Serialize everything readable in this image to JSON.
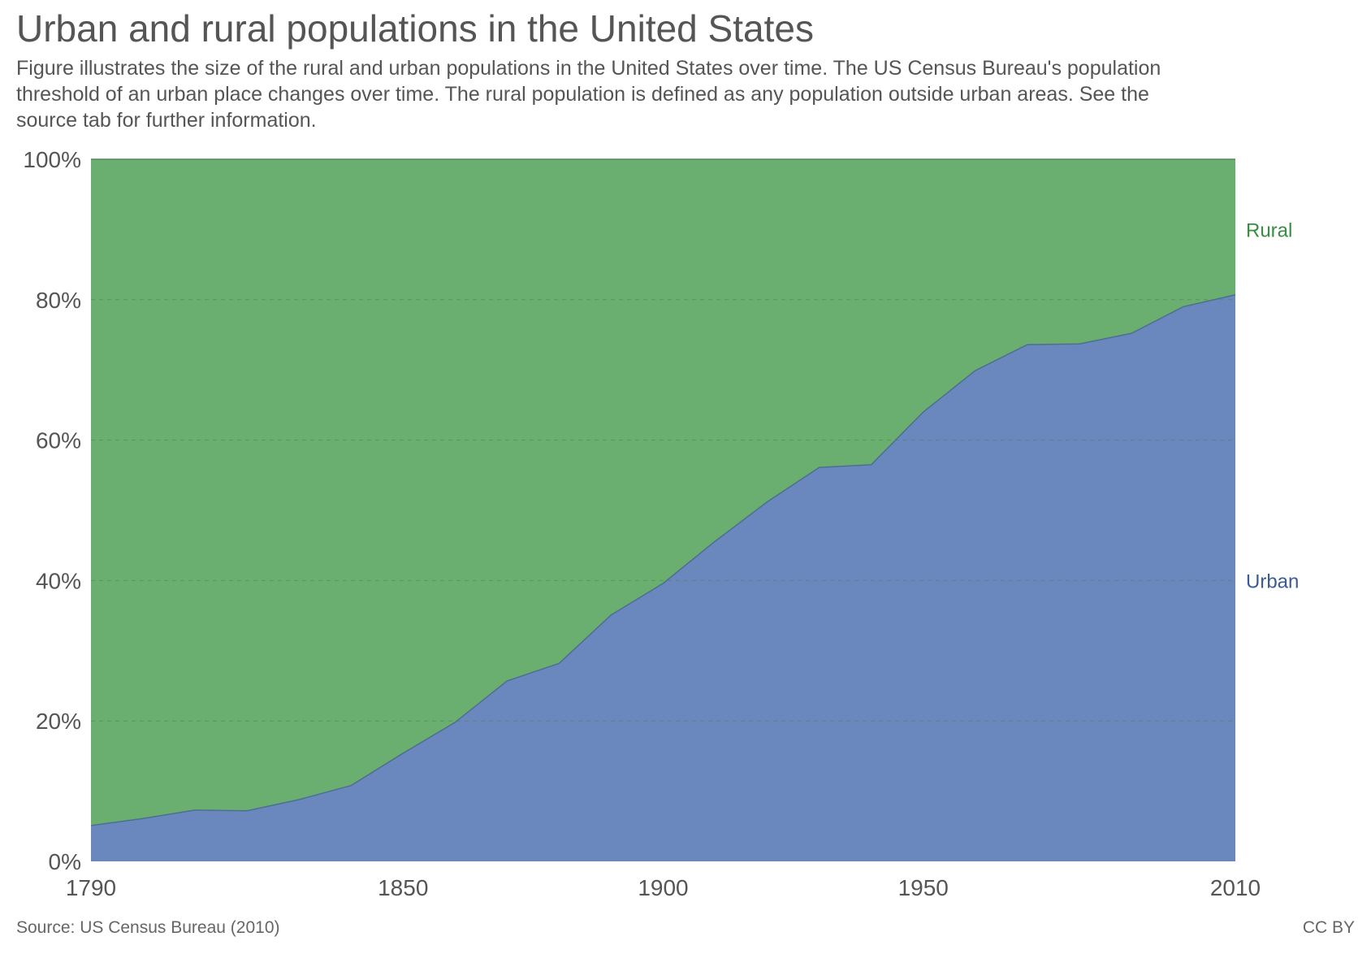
{
  "header": {
    "title": "Urban and rural populations in the United States",
    "subtitle": "Figure illustrates the size of the rural and urban populations in the United States over time. The US Census Bureau's population threshold of an urban place changes over time. The rural population is defined as any population outside urban areas. See the source tab for further information."
  },
  "footer": {
    "source": "Source: US Census Bureau (2010)",
    "license": "CC BY"
  },
  "colors": {
    "urban": "#6a88bd",
    "rural": "#6aaf70",
    "urban_label": "#3a5a98",
    "rural_label": "#3a8c42",
    "grid": "#4a7f55",
    "axis_text": "#555555"
  },
  "chart_data": {
    "type": "area",
    "stacked": true,
    "normalized": true,
    "x": [
      1790,
      1800,
      1810,
      1820,
      1830,
      1840,
      1850,
      1860,
      1870,
      1880,
      1890,
      1900,
      1910,
      1920,
      1930,
      1940,
      1950,
      1960,
      1970,
      1980,
      1990,
      2000,
      2010
    ],
    "series": [
      {
        "name": "Urban",
        "values": [
          5.1,
          6.1,
          7.3,
          7.2,
          8.8,
          10.8,
          15.4,
          19.8,
          25.7,
          28.2,
          35.1,
          39.6,
          45.6,
          51.2,
          56.1,
          56.5,
          64.0,
          69.9,
          73.6,
          73.7,
          75.2,
          79.0,
          80.7
        ]
      },
      {
        "name": "Rural",
        "values": [
          94.9,
          93.9,
          92.7,
          92.8,
          91.2,
          89.2,
          84.6,
          80.2,
          74.3,
          71.8,
          64.9,
          60.4,
          54.4,
          48.8,
          43.9,
          43.5,
          36.0,
          30.1,
          26.4,
          26.3,
          24.8,
          21.0,
          19.3
        ]
      }
    ],
    "xlim": [
      1790,
      2010
    ],
    "ylim": [
      0,
      100
    ],
    "x_ticks": [
      1790,
      1850,
      1900,
      1950,
      2010
    ],
    "x_tick_labels": [
      "1790",
      "1850",
      "1900",
      "1950",
      "2010"
    ],
    "y_ticks": [
      0,
      20,
      40,
      60,
      80,
      100
    ],
    "y_tick_labels": [
      "0%",
      "20%",
      "40%",
      "60%",
      "80%",
      "100%"
    ],
    "series_label_values": {
      "Rural": 90,
      "Urban": 40
    },
    "grid": true,
    "legend": "inline-right"
  }
}
